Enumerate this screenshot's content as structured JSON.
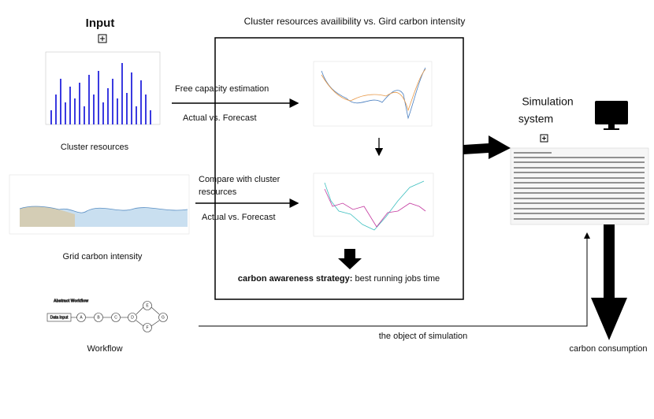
{
  "title": "Cluster resources availibility vs. Gird carbon intensity",
  "input": {
    "title": "Input",
    "cluster_label": "Cluster resources",
    "grid_label": "Grid carbon intensity",
    "workflow_label": "Workflow",
    "workflow": {
      "title": "Abstract Workflow",
      "input_node": "Data input",
      "nodes": [
        "A",
        "B",
        "C",
        "D",
        "E",
        "F",
        "G"
      ]
    }
  },
  "flows": {
    "free_capacity": "Free capacity estimation",
    "actual_forecast_1": "Actual vs. Forecast",
    "compare": [
      "Compare with cluster",
      "resources"
    ],
    "actual_forecast_2": "Actual vs. Forecast",
    "strategy_bold": "carbon awareness strategy:",
    "strategy_rest": " best running jobs time",
    "object": "the object of simulation"
  },
  "simulation": {
    "title": [
      "Simulation",
      "system"
    ],
    "output": "carbon consumption"
  }
}
